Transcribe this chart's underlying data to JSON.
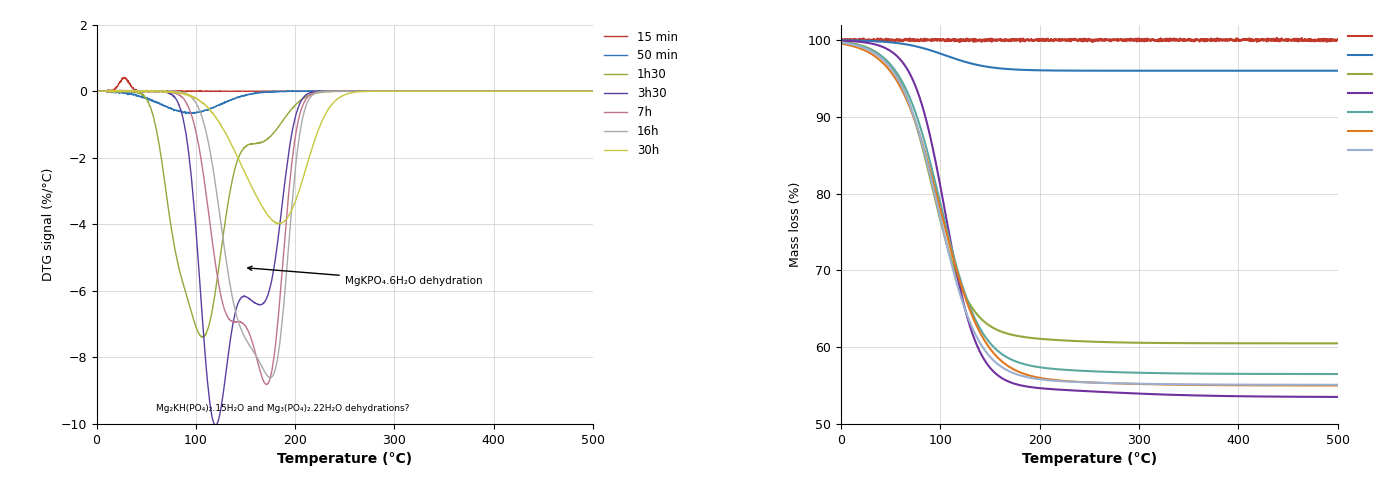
{
  "colors": {
    "15min": "#C0392B",
    "50min": "#2E75B6",
    "1h30": "#92A83A",
    "3h30": "#5B3FA0",
    "7h": "#C0748A",
    "16h": "#AAAAAA",
    "30h": "#C8C840"
  },
  "colors_right": {
    "15min": "#C0392B",
    "50min": "#2E75B6",
    "1h30": "#92A83A",
    "3h30": "#7030A0",
    "7h": "#5BA8A0",
    "16h": "#E07820",
    "30h": "#9BB0D0"
  },
  "legend_labels": [
    "15 min",
    "50 min",
    "1h30",
    "3h30",
    "7h",
    "16h",
    "30h"
  ],
  "xlim": [
    0,
    500
  ],
  "left_ylim": [
    -10,
    2
  ],
  "right_ylim": [
    50,
    102
  ],
  "left_yticks": [
    -10,
    -8,
    -6,
    -4,
    -2,
    0,
    2
  ],
  "right_yticks": [
    50,
    60,
    70,
    80,
    90,
    100
  ],
  "xticks": [
    0,
    100,
    200,
    300,
    400,
    500
  ],
  "xlabel": "Temperature (°C)",
  "left_ylabel": "DTG signal (%/°C)",
  "right_ylabel": "Mass loss (%)",
  "annotation1_text": "MgKPO₄.6H₂O dehydration",
  "annotation2_text": "Mg₂KH(PO₄)₂.15H₂O and Mg₃(PO₄)₂.22H₂O dehydrations?"
}
